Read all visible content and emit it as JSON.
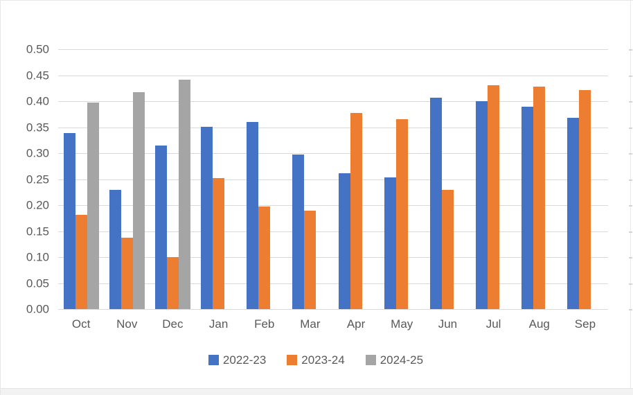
{
  "chart_data": {
    "type": "bar",
    "title": "",
    "xlabel": "",
    "ylabel": "",
    "categories": [
      "Oct",
      "Nov",
      "Dec",
      "Jan",
      "Feb",
      "Mar",
      "Apr",
      "May",
      "Jun",
      "Jul",
      "Aug",
      "Sep"
    ],
    "series": [
      {
        "name": "2022-23",
        "color": "#4472C4",
        "values": [
          0.339,
          0.23,
          0.315,
          0.351,
          0.36,
          0.298,
          0.261,
          0.253,
          0.407,
          0.4,
          0.389,
          0.368
        ]
      },
      {
        "name": "2023-24",
        "color": "#ED7D31",
        "values": [
          0.181,
          0.138,
          0.1,
          0.252,
          0.198,
          0.19,
          0.377,
          0.365,
          0.229,
          0.431,
          0.428,
          0.421
        ]
      },
      {
        "name": "2024-25",
        "color": "#A5A5A5",
        "values": [
          0.397,
          0.417,
          0.441,
          null,
          null,
          null,
          null,
          null,
          null,
          null,
          null,
          null
        ]
      }
    ],
    "ylim": [
      0,
      0.5
    ],
    "y_ticks": [
      "0.00",
      "0.05",
      "0.10",
      "0.15",
      "0.20",
      "0.25",
      "0.30",
      "0.35",
      "0.40",
      "0.45",
      "0.50"
    ],
    "grid": "horizontal",
    "gridline_color": "#D9D9D9",
    "axis_text_color": "#595959",
    "legend_position": "bottom",
    "background_color": "#FFFFFF"
  }
}
